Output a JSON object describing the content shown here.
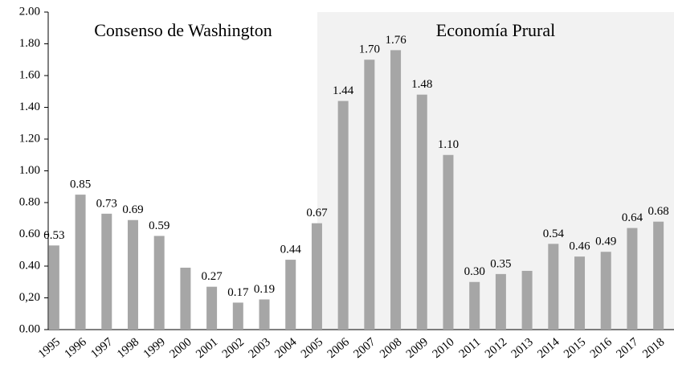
{
  "chart_data": {
    "type": "bar",
    "annotations": [
      "Consenso de Washington",
      "Economía Prural"
    ],
    "categories": [
      "1995",
      "1996",
      "1997",
      "1998",
      "1999",
      "2000",
      "2001",
      "2002",
      "2003",
      "2004",
      "2005",
      "2006",
      "2007",
      "2008",
      "2009",
      "2010",
      "2011",
      "2012",
      "2013",
      "2014",
      "2015",
      "2016",
      "2017",
      "2018"
    ],
    "values": [
      0.53,
      0.85,
      0.73,
      0.69,
      0.59,
      0.39,
      0.27,
      0.17,
      0.19,
      0.44,
      0.67,
      1.44,
      1.7,
      1.76,
      1.48,
      1.1,
      0.3,
      0.35,
      0.37,
      0.54,
      0.46,
      0.49,
      0.64,
      0.68
    ],
    "value_labels": [
      "0.53",
      "0.85",
      "0.73",
      "0.69",
      "0.59",
      null,
      "0.27",
      "0.17",
      "0.19",
      "0.44",
      "0.67",
      "1.44",
      "1.70",
      "1.76",
      "1.48",
      "1.10",
      "0.30",
      "0.35",
      null,
      "0.54",
      "0.46",
      "0.49",
      "0.64",
      "0.68"
    ],
    "color": "#a6a6a6",
    "ylim": [
      0,
      2
    ],
    "yticks": [
      {
        "value": 0,
        "label": "0.00"
      },
      {
        "value": 0.2,
        "label": "0,20"
      },
      {
        "value": 0.4,
        "label": "0.40"
      },
      {
        "value": 0.6,
        "label": "0.60"
      },
      {
        "value": 0.8,
        "label": "0.80"
      },
      {
        "value": 1,
        "label": "1.00"
      },
      {
        "value": 1.2,
        "label": "1.20"
      },
      {
        "value": 1.4,
        "label": "1.40"
      },
      {
        "value": 1.6,
        "label": "1.60"
      },
      {
        "value": 1.8,
        "label": "1.80"
      },
      {
        "value": 2,
        "label": "2.00"
      }
    ],
    "grid": false
  }
}
